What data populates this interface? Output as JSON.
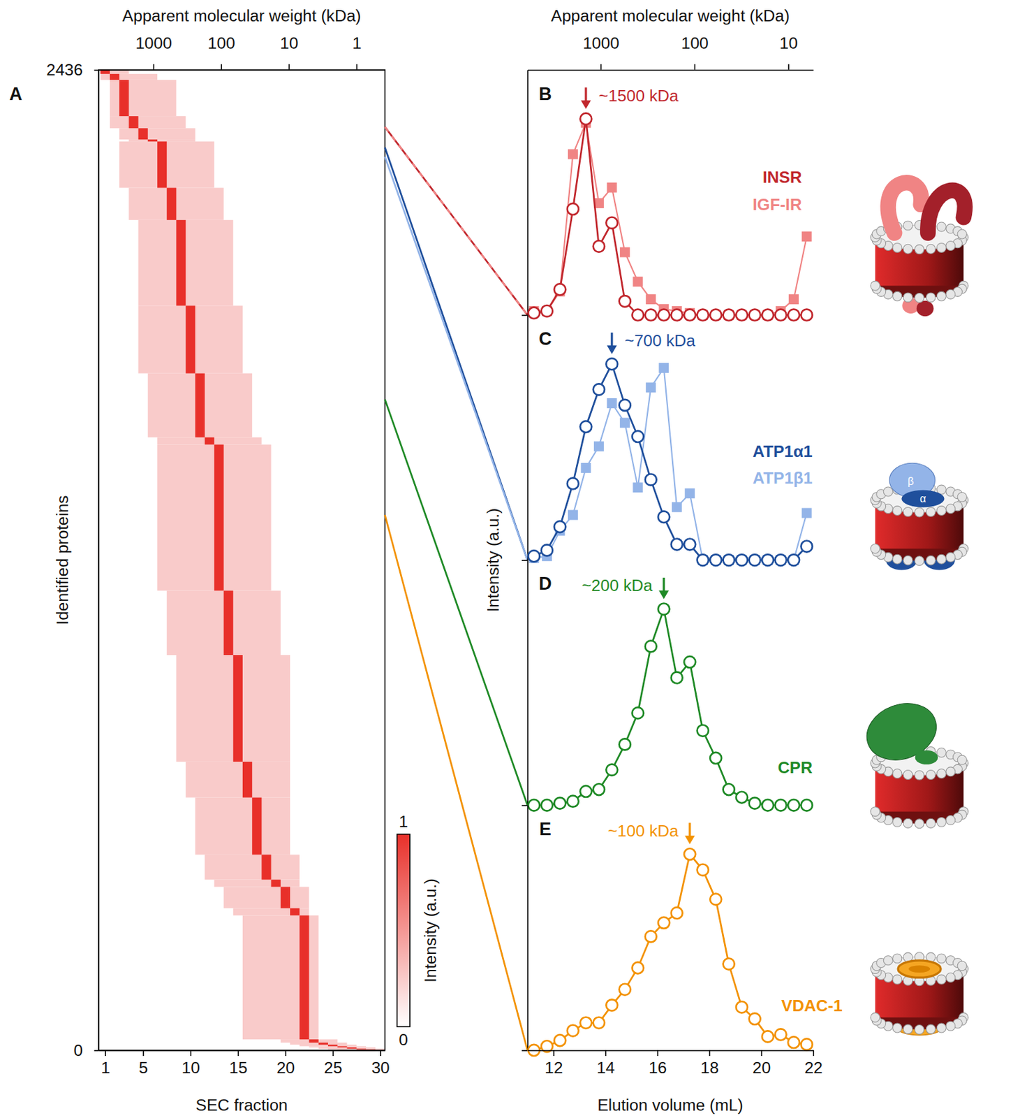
{
  "chart_data": [
    {
      "type": "heatmap",
      "panel": "A",
      "x_label": "SEC fraction",
      "x2_label": "Apparent molecular weight (kDa)",
      "y_label": "Identified proteins",
      "xlim": [
        0.3,
        30.5
      ],
      "xticks": [
        1,
        5,
        10,
        15,
        20,
        25,
        30
      ],
      "x2lim": [
        6457,
        0.38
      ],
      "x2ticks": [
        1000,
        100,
        10,
        1
      ],
      "log": "x2",
      "ylim": [
        0,
        2436
      ],
      "yticks": [
        0,
        2436
      ],
      "color": "#e8302a",
      "fractions": [
        1,
        2,
        3,
        4,
        5,
        6,
        7,
        8,
        9,
        10,
        11,
        12,
        13,
        14,
        15,
        16,
        17,
        18,
        19,
        20,
        21,
        22,
        23,
        24,
        25,
        26,
        27,
        28,
        29,
        30
      ],
      "peak_counts": [
        10,
        15,
        90,
        30,
        28,
        5,
        115,
        80,
        213,
        168,
        159,
        18,
        363,
        160,
        265,
        89,
        142,
        62,
        18,
        53,
        18,
        308,
        8,
        5,
        4,
        3,
        3,
        2,
        2,
        0
      ],
      "peak_intensity": 1,
      "spread_lo": [
        1,
        1,
        2,
        2,
        3,
        4,
        3,
        4,
        5,
        5,
        6,
        7,
        7,
        8,
        9,
        10,
        11,
        12,
        13,
        14,
        15,
        16,
        20,
        21,
        22,
        23,
        24,
        25,
        26,
        27
      ],
      "spread_hi": [
        3,
        6,
        8,
        9,
        10,
        10,
        12,
        13,
        14,
        15,
        16,
        17,
        18,
        19,
        20,
        20,
        20,
        21,
        21,
        22,
        22,
        23,
        25,
        26,
        27,
        28,
        29,
        30,
        30,
        30
      ],
      "spread_intensity": 0.25,
      "colorbar": {
        "label": "Intensity (a.u.)",
        "range": [
          0,
          1
        ],
        "ticks": [
          0,
          1
        ]
      }
    },
    {
      "type": "line",
      "x_label": "Elution volume (mL)",
      "x2_label": "Apparent molecular weight (kDa)",
      "y_label": "Intensity (a.u.)",
      "xlim": [
        11,
        22
      ],
      "xticks": [
        12,
        14,
        16,
        18,
        20,
        22
      ],
      "x2lim": [
        6026,
        5.43
      ],
      "x2ticks": [
        1000,
        100,
        10
      ],
      "log": "x2",
      "tick_labels": "x",
      "x": [
        11.25,
        11.75,
        12.25,
        12.75,
        13.25,
        13.75,
        14.25,
        14.75,
        15.25,
        15.75,
        16.25,
        16.75,
        17.25,
        17.75,
        18.25,
        18.75,
        19.25,
        19.75,
        20.25,
        20.75,
        21.25,
        21.75
      ],
      "panels": [
        {
          "panel": "B",
          "ylim": [
            0,
            1.25
          ],
          "yticks": [
            0
          ],
          "annotation": {
            "text": "~1500 kDa",
            "x": 13.25
          },
          "series": [
            {
              "name": "INSR",
              "color": "#c1272d",
              "marker": "circle",
              "line_style": "solid",
              "heatmap_row": 2294,
              "values": [
                0.01,
                0.02,
                0.13,
                0.54,
                1.0,
                0.35,
                0.47,
                0.07,
                0,
                0,
                0,
                0,
                0,
                0,
                0,
                0,
                0,
                0,
                0,
                0,
                0,
                0
              ]
            },
            {
              "name": "IGF-IR",
              "color": "#f08484",
              "marker": "square",
              "line_style": "solid",
              "heatmap_row": 2294,
              "values": [
                0.02,
                0.02,
                0.12,
                0.82,
                0.98,
                0.57,
                0.65,
                0.32,
                0.17,
                0.08,
                0.03,
                0.02,
                0.01,
                0,
                0,
                0,
                0,
                0,
                0,
                0.02,
                0.08,
                0.4
              ]
            }
          ]
        },
        {
          "panel": "C",
          "ylim": [
            0,
            1.25
          ],
          "yticks": [
            0
          ],
          "annotation": {
            "text": "~700 kDa",
            "x": 14.25
          },
          "cartoon_labels": [
            "β",
            "α"
          ],
          "series": [
            {
              "name": "ATP1α1",
              "color": "#1f4f9c",
              "marker": "circle",
              "line_style": "solid",
              "heatmap_row": 2243,
              "values": [
                0.02,
                0.05,
                0.17,
                0.39,
                0.68,
                0.87,
                1.0,
                0.79,
                0.63,
                0.41,
                0.22,
                0.08,
                0.08,
                0,
                0,
                0,
                0,
                0,
                0,
                0,
                0,
                0.07
              ]
            },
            {
              "name": "ATP1β1",
              "color": "#93b4e8",
              "marker": "square",
              "line_style": "solid",
              "heatmap_row": 2220,
              "values": [
                0.01,
                0.02,
                0.15,
                0.23,
                0.47,
                0.58,
                0.8,
                0.7,
                0.37,
                0.88,
                0.98,
                0.27,
                0.34,
                0,
                0,
                0,
                0,
                0,
                0,
                0,
                0,
                0.24
              ]
            }
          ]
        },
        {
          "panel": "D",
          "ylim": [
            0,
            1.25
          ],
          "yticks": [
            0
          ],
          "annotation": {
            "text": "~200 kDa",
            "x": 16.25
          },
          "series": [
            {
              "name": "CPR",
              "color": "#1f8a26",
              "marker": "circle",
              "line_style": "solid",
              "heatmap_row": 1617,
              "values": [
                0,
                0,
                0.01,
                0.02,
                0.07,
                0.08,
                0.18,
                0.31,
                0.47,
                0.81,
                1.0,
                0.65,
                0.73,
                0.38,
                0.24,
                0.08,
                0.04,
                0.01,
                0,
                0,
                0,
                0
              ]
            }
          ]
        },
        {
          "panel": "E",
          "ylim": [
            0,
            1.25
          ],
          "yticks": [
            0
          ],
          "annotation": {
            "text": "~100 kDa",
            "x": 17.25
          },
          "series": [
            {
              "name": "VDAC-1",
              "color": "#f39200",
              "marker": "circle",
              "line_style": "solid",
              "heatmap_row": 1330,
              "values": [
                0,
                0.02,
                0.05,
                0.1,
                0.14,
                0.14,
                0.23,
                0.31,
                0.42,
                0.58,
                0.65,
                0.7,
                1.0,
                0.92,
                0.77,
                0.44,
                0.22,
                0.16,
                0.07,
                0.08,
                0.04,
                0.03
              ]
            }
          ]
        }
      ]
    }
  ]
}
